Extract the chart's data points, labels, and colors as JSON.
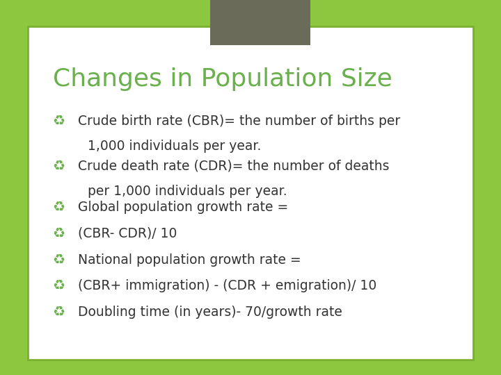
{
  "title": "Changes in Population Size",
  "title_color": "#6ab04c",
  "title_fontsize": 26,
  "background_outer": "#8dc63f",
  "background_inner": "#ffffff",
  "tab_color": "#6b6b5a",
  "bullet_color": "#6ab04c",
  "text_color": "#333333",
  "bullet_fontsize": 13.5,
  "bullets": [
    {
      "main": "Crude birth rate (CBR)= the number of births per",
      "cont": "1,000 individuals per year."
    },
    {
      "main": "Crude death rate (CDR)= the number of deaths",
      "cont": "per 1,000 individuals per year."
    },
    {
      "main": "Global population growth rate ="
    },
    {
      "main": "(CBR- CDR)/ 10"
    },
    {
      "main": "National population growth rate ="
    },
    {
      "main": "(CBR+ immigration) - (CDR + emigration)/ 10"
    },
    {
      "main": "Doubling time (in years)- 70/growth rate"
    }
  ]
}
